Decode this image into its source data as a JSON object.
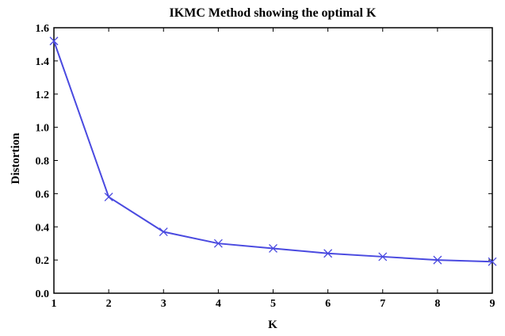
{
  "chart_data": {
    "type": "line",
    "title": "IKMC Method showing the optimal K",
    "xlabel": "K",
    "ylabel": "Distortion",
    "x": [
      1,
      2,
      3,
      4,
      5,
      6,
      7,
      8,
      9
    ],
    "xticks": [
      "1",
      "2",
      "3",
      "4",
      "5",
      "6",
      "7",
      "8",
      "9"
    ],
    "yticks": [
      "0.0",
      "0.2",
      "0.4",
      "0.6",
      "0.8",
      "1.0",
      "1.2",
      "1.4",
      "1.6"
    ],
    "xlim": [
      1,
      9
    ],
    "ylim": [
      0,
      1.6
    ],
    "grid": false,
    "marker": "x",
    "series": [
      {
        "values": [
          1.52,
          0.58,
          0.37,
          0.3,
          0.27,
          0.24,
          0.22,
          0.2,
          0.19
        ],
        "color": "#4a4ae0"
      }
    ]
  }
}
